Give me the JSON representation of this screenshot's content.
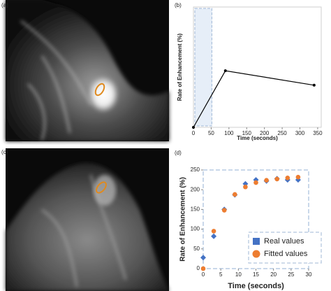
{
  "panel_labels": [
    "(a)",
    "(c)"
  ],
  "chart_data": [
    {
      "type": "line",
      "label": "(b)",
      "y_label": "Rate of Enhancement (%)",
      "x_label": "Time (seconds)",
      "x": [
        0,
        90,
        340
      ],
      "values": [
        0,
        47,
        35
      ],
      "color": "#000000",
      "xlim": [
        0,
        360
      ],
      "ylim": [
        0,
        100
      ],
      "xticks": [
        0,
        50,
        100,
        150,
        200,
        250,
        300,
        350
      ],
      "shaded_xrange": [
        0,
        48
      ]
    },
    {
      "type": "scatter",
      "label": "(d)",
      "y_label": "Rate of Enhancement (%)",
      "x_label": "Time (seconds)",
      "x": [
        0,
        3,
        6,
        9,
        12,
        15,
        18,
        21,
        24,
        27
      ],
      "series": [
        {
          "name": "Real values",
          "color": "#4472c4",
          "marker": "diamond",
          "values": [
            28,
            82,
            150,
            187,
            215,
            225,
            222,
            228,
            225,
            225
          ]
        },
        {
          "name": "Fitted values",
          "color": "#ed7d31",
          "marker": "circle",
          "values": [
            0,
            95,
            148,
            188,
            207,
            218,
            224,
            227,
            230,
            232
          ]
        }
      ],
      "xlim": [
        0,
        30
      ],
      "ylim": [
        0,
        250
      ],
      "xticks": [
        0,
        5,
        10,
        15,
        20,
        25,
        30
      ],
      "yticks": [
        0,
        50,
        100,
        150,
        200,
        250
      ],
      "legend": "lower right"
    }
  ]
}
